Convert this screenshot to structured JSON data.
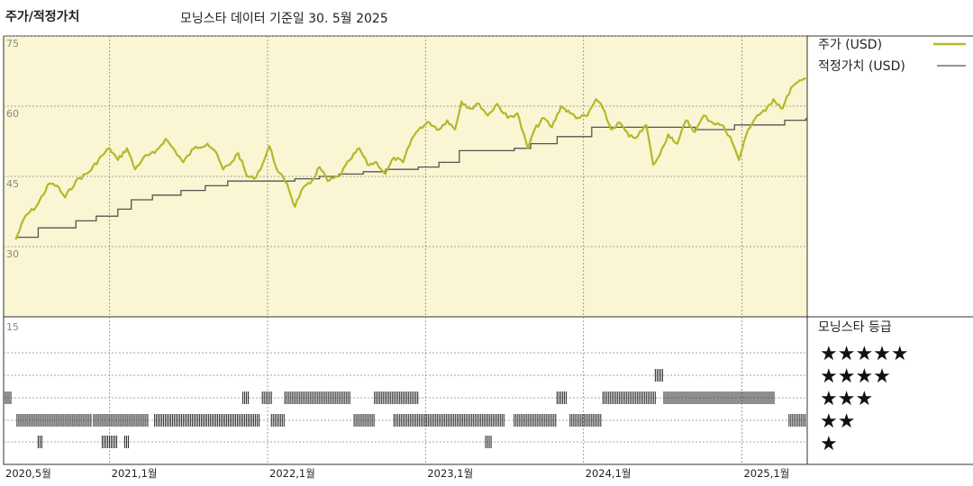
{
  "header": {
    "title": "주가/적정가치",
    "subtitle": "모닝스타 데이터 기준일 30. 5월 2025"
  },
  "colors": {
    "price": "#b5b82a",
    "fair_value": "#555555",
    "plot_bg": "#faf5d2",
    "rating_bar": "#333333"
  },
  "chart_data": [
    {
      "type": "line",
      "title": "",
      "series": [
        {
          "name": "주가 (USD)",
          "points": [
            [
              "2020-05-29",
              31.5
            ],
            [
              "2020-06-20",
              36.5
            ],
            [
              "2020-07-15",
              38.5
            ],
            [
              "2020-08-15",
              43.5
            ],
            [
              "2020-09-01",
              43.0
            ],
            [
              "2020-09-20",
              40.5
            ],
            [
              "2020-10-15",
              44.0
            ],
            [
              "2020-11-15",
              46.0
            ],
            [
              "2020-12-15",
              49.5
            ],
            [
              "2021-01-01",
              51.0
            ],
            [
              "2021-01-20",
              48.5
            ],
            [
              "2021-02-10",
              51.0
            ],
            [
              "2021-03-01",
              46.5
            ],
            [
              "2021-03-20",
              49.0
            ],
            [
              "2021-04-15",
              50.0
            ],
            [
              "2021-05-10",
              53.0
            ],
            [
              "2021-06-01",
              50.5
            ],
            [
              "2021-06-20",
              48.0
            ],
            [
              "2021-07-15",
              51.0
            ],
            [
              "2021-08-15",
              52.0
            ],
            [
              "2021-09-01",
              50.5
            ],
            [
              "2021-09-20",
              46.5
            ],
            [
              "2021-10-10",
              48.0
            ],
            [
              "2021-10-25",
              50.0
            ],
            [
              "2021-11-15",
              45.0
            ],
            [
              "2021-12-01",
              44.5
            ],
            [
              "2021-12-20",
              47.5
            ],
            [
              "2022-01-05",
              51.5
            ],
            [
              "2022-01-25",
              46.0
            ],
            [
              "2022-02-15",
              43.5
            ],
            [
              "2022-03-05",
              38.5
            ],
            [
              "2022-03-20",
              42.0
            ],
            [
              "2022-04-10",
              43.5
            ],
            [
              "2022-05-01",
              47.0
            ],
            [
              "2022-05-20",
              44.0
            ],
            [
              "2022-06-15",
              45.0
            ],
            [
              "2022-07-10",
              48.5
            ],
            [
              "2022-08-01",
              51.0
            ],
            [
              "2022-08-20",
              47.5
            ],
            [
              "2022-09-10",
              48.0
            ],
            [
              "2022-09-30",
              45.5
            ],
            [
              "2022-10-20",
              49.0
            ],
            [
              "2022-11-10",
              48.0
            ],
            [
              "2022-11-30",
              53.0
            ],
            [
              "2022-12-20",
              55.5
            ],
            [
              "2023-01-10",
              56.5
            ],
            [
              "2023-02-01",
              55.0
            ],
            [
              "2023-02-20",
              57.0
            ],
            [
              "2023-03-10",
              55.0
            ],
            [
              "2023-03-25",
              61.0
            ],
            [
              "2023-04-15",
              59.5
            ],
            [
              "2023-05-05",
              60.5
            ],
            [
              "2023-05-25",
              58.0
            ],
            [
              "2023-06-15",
              60.5
            ],
            [
              "2023-07-10",
              57.5
            ],
            [
              "2023-08-01",
              58.5
            ],
            [
              "2023-08-25",
              51.0
            ],
            [
              "2023-09-10",
              55.0
            ],
            [
              "2023-10-01",
              57.5
            ],
            [
              "2023-10-20",
              55.5
            ],
            [
              "2023-11-10",
              60.0
            ],
            [
              "2023-12-01",
              58.5
            ],
            [
              "2023-12-20",
              57.5
            ],
            [
              "2024-01-10",
              58.0
            ],
            [
              "2024-01-30",
              61.5
            ],
            [
              "2024-02-15",
              59.5
            ],
            [
              "2024-03-05",
              55.0
            ],
            [
              "2024-03-25",
              56.5
            ],
            [
              "2024-04-15",
              53.5
            ],
            [
              "2024-05-05",
              53.5
            ],
            [
              "2024-05-25",
              56.0
            ],
            [
              "2024-06-10",
              47.5
            ],
            [
              "2024-06-25",
              49.5
            ],
            [
              "2024-07-15",
              54.0
            ],
            [
              "2024-08-05",
              52.0
            ],
            [
              "2024-08-25",
              57.0
            ],
            [
              "2024-09-15",
              54.5
            ],
            [
              "2024-10-05",
              58.0
            ],
            [
              "2024-10-25",
              56.5
            ],
            [
              "2024-11-15",
              56.0
            ],
            [
              "2024-12-05",
              53.5
            ],
            [
              "2024-12-25",
              48.5
            ],
            [
              "2025-01-15",
              55.0
            ],
            [
              "2025-02-05",
              58.0
            ],
            [
              "2025-02-25",
              59.0
            ],
            [
              "2025-03-15",
              61.5
            ],
            [
              "2025-04-05",
              59.5
            ],
            [
              "2025-04-25",
              64.0
            ],
            [
              "2025-05-29",
              66.0
            ]
          ]
        },
        {
          "name": "적정가치 (USD)",
          "steps": [
            [
              "2020-05-29",
              32.0
            ],
            [
              "2020-07-20",
              34.0
            ],
            [
              "2020-10-15",
              35.5
            ],
            [
              "2020-12-01",
              36.5
            ],
            [
              "2021-01-20",
              38.0
            ],
            [
              "2021-02-20",
              40.0
            ],
            [
              "2021-04-10",
              41.0
            ],
            [
              "2021-06-15",
              42.0
            ],
            [
              "2021-08-10",
              43.0
            ],
            [
              "2021-10-01",
              44.0
            ],
            [
              "2022-03-05",
              44.5
            ],
            [
              "2022-05-01",
              45.0
            ],
            [
              "2022-06-15",
              45.5
            ],
            [
              "2022-08-10",
              46.0
            ],
            [
              "2022-10-01",
              46.5
            ],
            [
              "2022-12-15",
              47.0
            ],
            [
              "2023-02-01",
              48.0
            ],
            [
              "2023-03-20",
              50.5
            ],
            [
              "2023-07-25",
              51.0
            ],
            [
              "2023-09-01",
              52.0
            ],
            [
              "2023-11-01",
              53.5
            ],
            [
              "2024-01-20",
              55.5
            ],
            [
              "2024-09-15",
              55.0
            ],
            [
              "2024-12-15",
              56.0
            ],
            [
              "2025-04-10",
              57.0
            ],
            [
              "2025-05-29",
              57.5
            ]
          ]
        }
      ],
      "xlim": [
        "2020-05-01",
        "2025-06-01"
      ],
      "ylim": [
        15,
        75
      ],
      "yticks": [
        75,
        60,
        45,
        30
      ],
      "grid": true,
      "legend_position": "right"
    },
    {
      "type": "bar",
      "title": "모닝스타 등급",
      "series": [
        {
          "name": "★★★★★",
          "level": 5,
          "ranges": []
        },
        {
          "name": "★★★★",
          "level": 4,
          "ranges": [
            [
              "2024-06-15",
              "2024-07-05"
            ]
          ]
        },
        {
          "name": "★★★",
          "level": 3,
          "ranges": [
            [
              "2020-05-01",
              "2020-05-20"
            ],
            [
              "2021-11-05",
              "2021-11-20"
            ],
            [
              "2021-12-20",
              "2022-01-10"
            ],
            [
              "2022-02-10",
              "2022-07-10"
            ],
            [
              "2022-09-05",
              "2022-12-15"
            ],
            [
              "2023-11-01",
              "2023-11-25"
            ],
            [
              "2024-02-15",
              "2024-06-15"
            ],
            [
              "2024-07-05",
              "2025-03-20"
            ]
          ]
        },
        {
          "name": "★★",
          "level": 2,
          "ranges": [
            [
              "2020-06-01",
              "2020-11-20"
            ],
            [
              "2020-11-25",
              "2021-04-01"
            ],
            [
              "2021-04-15",
              "2021-12-15"
            ],
            [
              "2022-01-10",
              "2022-02-10"
            ],
            [
              "2022-07-20",
              "2022-09-05"
            ],
            [
              "2022-10-20",
              "2023-07-01"
            ],
            [
              "2023-07-25",
              "2023-11-01"
            ],
            [
              "2023-12-01",
              "2024-02-10"
            ],
            [
              "2025-04-20",
              "2025-05-29"
            ]
          ]
        },
        {
          "name": "★",
          "level": 1,
          "ranges": [
            [
              "2020-07-20",
              "2020-08-01"
            ],
            [
              "2020-12-15",
              "2021-01-20"
            ],
            [
              "2021-02-05",
              "2021-02-15"
            ],
            [
              "2023-05-20",
              "2023-06-05"
            ]
          ]
        }
      ],
      "legend_title": "모닝스타 등급",
      "stars": [
        "★★★★★",
        "★★★★",
        "★★★",
        "★★",
        "★"
      ]
    }
  ],
  "legend": {
    "price_label": "주가 (USD)",
    "fair_value_label": "적정가치 (USD)",
    "rating_title": "모닝스타 등급"
  },
  "axes": {
    "yticks_top": [
      "75",
      "60",
      "45",
      "30"
    ],
    "ytick_bottom": "15",
    "xticks": [
      "2020,5월",
      "2021,1월",
      "2022,1월",
      "2023,1월",
      "2024,1월",
      "2025,1월"
    ]
  }
}
